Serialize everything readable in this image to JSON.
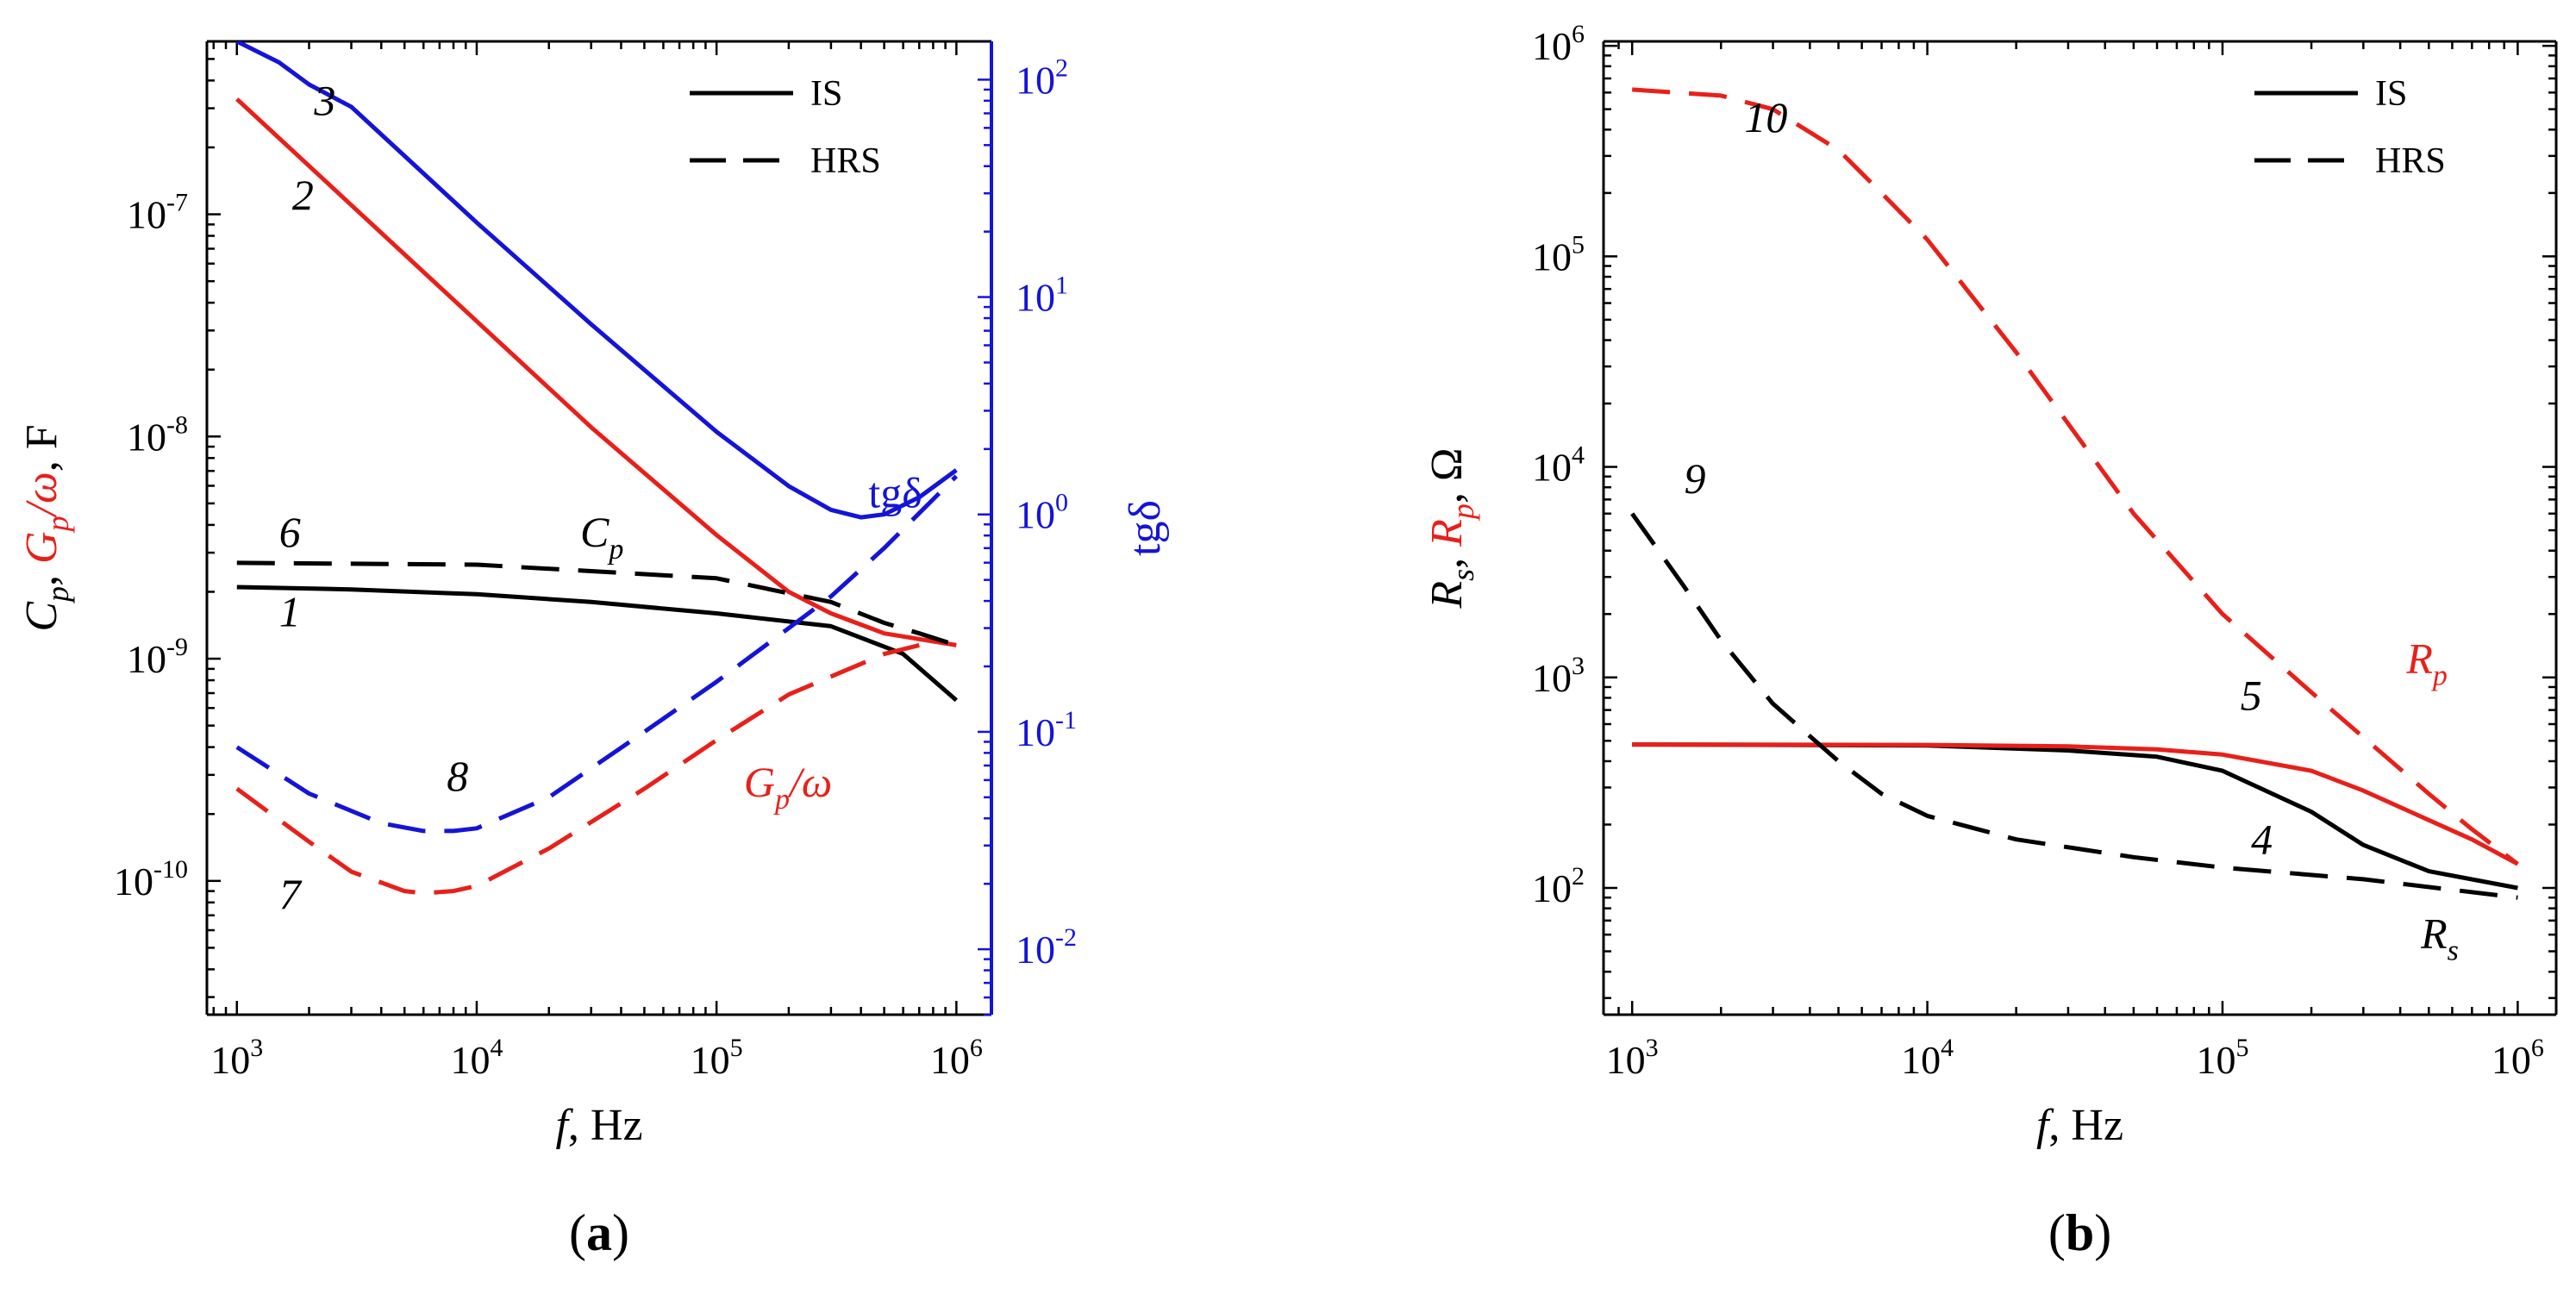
{
  "colors": {
    "black": "#000000",
    "red": "#e8201a",
    "blue": "#1414d8"
  },
  "chart_data": [
    {
      "type": "line",
      "panel_label": {
        "open": "(",
        "letter": "a",
        "close": ")"
      },
      "x_scale": "log",
      "xlim": [
        750,
        1400000
      ],
      "ylim_left": [
        2.5e-11,
        6e-07
      ],
      "ylim_right": [
        0.005,
        150
      ],
      "xlabel": {
        "var": "f",
        "rest": ", Hz"
      },
      "ylabel_left": {
        "p1": "C",
        "p1_sub": "p",
        "sep1": ", ",
        "p2": "G",
        "p2_sub": "p",
        "p2_rest": "/ω",
        "sep2": ", ",
        "p3": "F"
      },
      "ylabel_right": {
        "text": "tgδ"
      },
      "x_ticks": [
        {
          "value": 1000,
          "base": "10",
          "exp": "3"
        },
        {
          "value": 10000,
          "base": "10",
          "exp": "4"
        },
        {
          "value": 100000,
          "base": "10",
          "exp": "5"
        },
        {
          "value": 1000000,
          "base": "10",
          "exp": "6"
        }
      ],
      "y_ticks_left": [
        {
          "value": 1e-10,
          "base": "10",
          "exp": "-10"
        },
        {
          "value": 1e-09,
          "base": "10",
          "exp": "-9"
        },
        {
          "value": 1e-08,
          "base": "10",
          "exp": "-8"
        },
        {
          "value": 1e-07,
          "base": "10",
          "exp": "-7"
        }
      ],
      "y_ticks_right": [
        {
          "value": 0.01,
          "base": "10",
          "exp": "-2"
        },
        {
          "value": 0.1,
          "base": "10",
          "exp": "-1"
        },
        {
          "value": 1,
          "base": "10",
          "exp": "0"
        },
        {
          "value": 10,
          "base": "10",
          "exp": "1"
        },
        {
          "value": 100,
          "base": "10",
          "exp": "2"
        }
      ],
      "legend": {
        "position": "top-right",
        "entries": [
          {
            "label": "IS",
            "style": "solid"
          },
          {
            "label": "HRS",
            "style": "dashed"
          }
        ]
      },
      "series": [
        {
          "id": "1",
          "name": "Cp IS",
          "axis": "left",
          "color": "black",
          "style": "solid",
          "x": [
            1000,
            3000,
            10000,
            30000,
            100000,
            300000,
            600000,
            1000000
          ],
          "y": [
            2.1e-09,
            2.05e-09,
            1.95e-09,
            1.8e-09,
            1.6e-09,
            1.4e-09,
            1.05e-09,
            6.5e-10
          ]
        },
        {
          "id": "2",
          "name": "Gp/ω IS",
          "axis": "left",
          "color": "red",
          "style": "solid",
          "x": [
            1000,
            3000,
            10000,
            30000,
            100000,
            200000,
            300000,
            500000,
            1000000
          ],
          "y": [
            3.3e-07,
            1.1e-07,
            3.3e-08,
            1.1e-08,
            3.6e-09,
            2e-09,
            1.6e-09,
            1.3e-09,
            1.15e-09
          ]
        },
        {
          "id": "3",
          "name": "tgδ IS",
          "axis": "right",
          "color": "blue",
          "style": "solid",
          "x": [
            1000,
            1500,
            2000,
            3000,
            10000,
            30000,
            100000,
            200000,
            300000,
            400000,
            500000,
            700000,
            1000000
          ],
          "y": [
            150,
            120,
            95,
            75,
            22,
            7.5,
            2.4,
            1.35,
            1.05,
            0.97,
            1.0,
            1.2,
            1.6
          ]
        },
        {
          "id": "6",
          "name": "Cp HRS",
          "axis": "left",
          "color": "black",
          "style": "dashed",
          "x": [
            1000,
            10000,
            100000,
            300000,
            500000,
            700000,
            1000000
          ],
          "y": [
            2.7e-09,
            2.65e-09,
            2.3e-09,
            1.8e-09,
            1.45e-09,
            1.3e-09,
            1.15e-09
          ]
        },
        {
          "id": "7",
          "name": "Gp/ω HRS",
          "axis": "left",
          "color": "red",
          "style": "dashed",
          "x": [
            1000,
            2000,
            3000,
            5000,
            6000,
            8000,
            10000,
            20000,
            50000,
            100000,
            200000,
            500000,
            700000
          ],
          "y": [
            2.6e-10,
            1.5e-10,
            1.1e-10,
            9e-11,
            8.8e-11,
            9e-11,
            9.5e-11,
            1.4e-10,
            2.6e-10,
            4.3e-10,
            6.9e-10,
            1.05e-09,
            1.15e-09
          ]
        },
        {
          "id": "8",
          "name": "tgδ HRS",
          "axis": "right",
          "color": "blue",
          "style": "dashed",
          "x": [
            1000,
            2000,
            4000,
            6000,
            8000,
            10000,
            20000,
            50000,
            100000,
            200000,
            300000,
            500000,
            1000000
          ],
          "y": [
            0.085,
            0.052,
            0.038,
            0.035,
            0.035,
            0.036,
            0.05,
            0.1,
            0.17,
            0.3,
            0.42,
            0.7,
            1.5
          ]
        }
      ],
      "annotations": [
        {
          "text": "3",
          "x": 2100,
          "y": 2.8e-07,
          "color": "black",
          "italic": true
        },
        {
          "text": "2",
          "x": 1700,
          "y": 1.05e-07,
          "color": "black",
          "italic": true
        },
        {
          "text": "6",
          "x": 1500,
          "y": 3.2e-09,
          "color": "black",
          "italic": true
        },
        {
          "text": "1",
          "x": 1500,
          "y": 1.4e-09,
          "color": "black",
          "italic": true
        },
        {
          "text": "8",
          "x": 7500,
          "y": 2.55e-10,
          "color": "black",
          "italic": true
        },
        {
          "text": "7",
          "x": 1500,
          "y": 7.5e-11,
          "color": "black",
          "italic": true
        },
        {
          "text": "C",
          "sub": "p",
          "x": 27000,
          "y": 3.2e-09,
          "color": "black",
          "italic": true
        },
        {
          "text": "tgδ",
          "x": 430000,
          "y": 4.8e-09,
          "color": "blue",
          "italic": false
        },
        {
          "text": "G",
          "sub": "p",
          "rest": "/ω",
          "x": 130000,
          "y": 2.4e-10,
          "color": "red",
          "italic": true
        }
      ]
    },
    {
      "type": "line",
      "panel_label": {
        "open": "(",
        "letter": "b",
        "close": ")"
      },
      "x_scale": "log",
      "xlim": [
        800,
        1350000
      ],
      "ylim": [
        25,
        1050000
      ],
      "xlabel": {
        "var": "f",
        "rest": ", Hz"
      },
      "ylabel": {
        "p1": "R",
        "p1_sub": "s",
        "sep1": ", ",
        "p2": "R",
        "p2_sub": "p",
        "sep2": ", ",
        "p3": "Ω"
      },
      "x_ticks": [
        {
          "value": 1000,
          "base": "10",
          "exp": "3"
        },
        {
          "value": 10000,
          "base": "10",
          "exp": "4"
        },
        {
          "value": 100000,
          "base": "10",
          "exp": "5"
        },
        {
          "value": 1000000,
          "base": "10",
          "exp": "6"
        }
      ],
      "y_ticks": [
        {
          "value": 100,
          "base": "10",
          "exp": "2"
        },
        {
          "value": 1000,
          "base": "10",
          "exp": "3"
        },
        {
          "value": 10000,
          "base": "10",
          "exp": "4"
        },
        {
          "value": 100000,
          "base": "10",
          "exp": "5"
        },
        {
          "value": 1000000,
          "base": "10",
          "exp": "6"
        }
      ],
      "legend": {
        "position": "top-right",
        "entries": [
          {
            "label": "IS",
            "style": "solid"
          },
          {
            "label": "HRS",
            "style": "dashed"
          }
        ]
      },
      "series": [
        {
          "id": "4",
          "name": "Rs IS",
          "color": "black",
          "style": "solid",
          "x": [
            1000,
            10000,
            30000,
            60000,
            100000,
            200000,
            300000,
            500000,
            1000000
          ],
          "y": [
            480,
            475,
            450,
            420,
            360,
            230,
            160,
            120,
            100
          ]
        },
        {
          "id": "5",
          "name": "Rp IS",
          "color": "red",
          "style": "solid",
          "x": [
            1000,
            10000,
            30000,
            60000,
            100000,
            200000,
            300000,
            500000,
            700000,
            1000000
          ],
          "y": [
            480,
            478,
            470,
            455,
            430,
            360,
            290,
            210,
            170,
            130
          ]
        },
        {
          "id": "9",
          "name": "Rs HRS",
          "color": "black",
          "style": "dashed",
          "x": [
            1000,
            1500,
            2000,
            3000,
            5000,
            7000,
            10000,
            20000,
            50000,
            100000,
            300000,
            1000000
          ],
          "y": [
            6000,
            2700,
            1500,
            750,
            400,
            280,
            220,
            170,
            140,
            125,
            110,
            90
          ]
        },
        {
          "id": "10",
          "name": "Rp HRS",
          "color": "red",
          "style": "dashed",
          "x": [
            1000,
            2000,
            3000,
            5000,
            7000,
            10000,
            20000,
            50000,
            100000,
            200000,
            300000,
            500000,
            700000,
            1000000
          ],
          "y": [
            620000,
            580000,
            500000,
            320000,
            200000,
            120000,
            35000,
            6000,
            2000,
            850,
            520,
            280,
            190,
            130
          ]
        }
      ],
      "annotations": [
        {
          "text": "10",
          "x": 2400,
          "y": 390000,
          "color": "black",
          "italic": true
        },
        {
          "text": "9",
          "x": 1500,
          "y": 7500,
          "color": "black",
          "italic": true
        },
        {
          "text": "5",
          "x": 115000,
          "y": 700,
          "color": "black",
          "italic": true
        },
        {
          "text": "4",
          "x": 125000,
          "y": 145,
          "color": "black",
          "italic": true
        },
        {
          "text": "R",
          "sub": "p",
          "x": 420000,
          "y": 1050,
          "color": "red",
          "italic": true
        },
        {
          "text": "R",
          "sub": "s",
          "x": 470000,
          "y": 52,
          "color": "black",
          "italic": true
        }
      ]
    }
  ]
}
